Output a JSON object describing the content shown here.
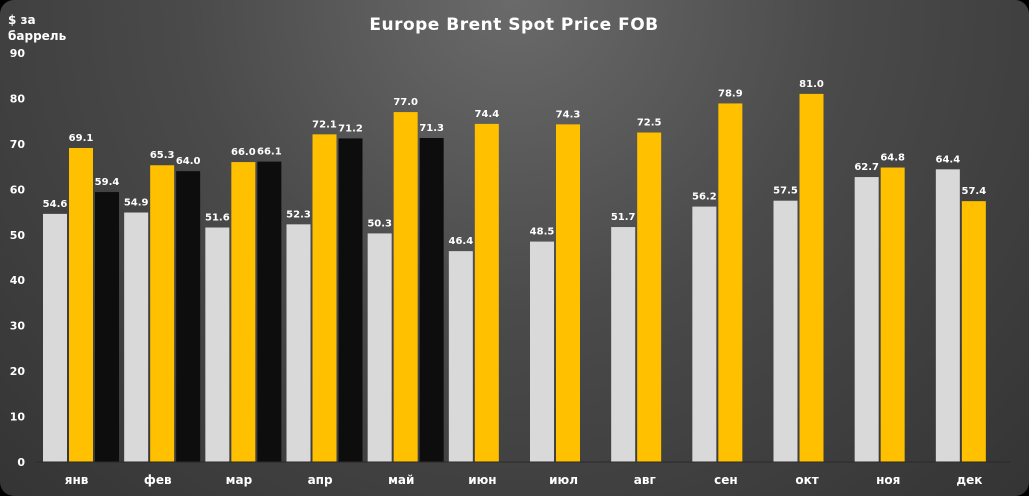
{
  "chart_data": {
    "type": "bar",
    "title": "Europe Brent Spot Price FOB",
    "ylabel": [
      "$ за",
      "баррель"
    ],
    "xlabel": "",
    "ylim": [
      0,
      90
    ],
    "yticks": [
      0,
      10,
      20,
      30,
      40,
      50,
      60,
      70,
      80,
      90
    ],
    "grid": false,
    "legend": "none",
    "categories": [
      "янв",
      "фев",
      "мар",
      "апр",
      "май",
      "июн",
      "июл",
      "авг",
      "сен",
      "окт",
      "ноя",
      "дек"
    ],
    "series": [
      {
        "color": "#d9d9d9",
        "values": [
          54.6,
          54.9,
          51.6,
          52.3,
          50.3,
          46.4,
          48.5,
          51.7,
          56.2,
          57.5,
          62.7,
          64.4
        ]
      },
      {
        "color": "#ffc000",
        "values": [
          69.1,
          65.3,
          66.0,
          72.1,
          77.0,
          74.4,
          74.3,
          72.5,
          78.9,
          81.0,
          64.8,
          57.4
        ]
      },
      {
        "color": "#0d0d0d",
        "values": [
          59.4,
          64.0,
          66.1,
          71.2,
          71.3,
          null,
          null,
          null,
          null,
          null,
          null,
          null
        ]
      }
    ]
  }
}
